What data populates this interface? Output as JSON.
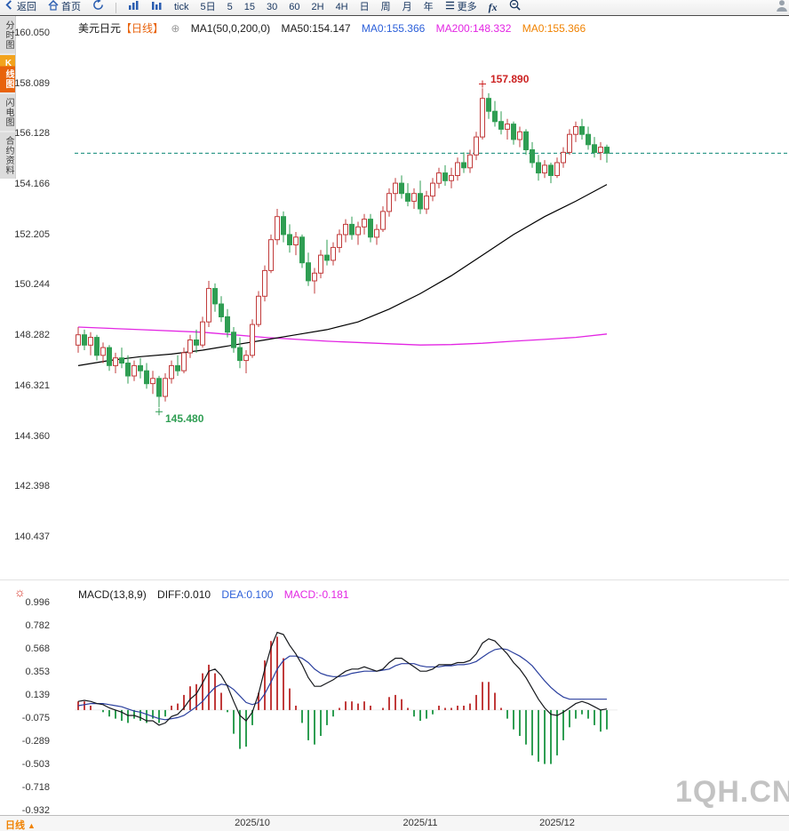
{
  "toolbar": {
    "items": [
      {
        "name": "back-button",
        "icon": "back",
        "label": "返回"
      },
      {
        "name": "home-button",
        "icon": "home",
        "label": "首页"
      },
      {
        "name": "refresh-button",
        "icon": "refresh",
        "label": ""
      },
      {
        "name": "toolbar-separator",
        "type": "sep"
      },
      {
        "name": "chart-type-bars-button",
        "icon": "bars",
        "label": ""
      },
      {
        "name": "chart-type-columns-button",
        "icon": "columns",
        "label": ""
      },
      {
        "name": "period-tick-button",
        "label": "tick"
      },
      {
        "name": "period-5d-button",
        "label": "5日"
      },
      {
        "name": "period-5-button",
        "label": "5"
      },
      {
        "name": "period-15-button",
        "label": "15"
      },
      {
        "name": "period-30-button",
        "label": "30"
      },
      {
        "name": "period-60-button",
        "label": "60"
      },
      {
        "name": "period-2h-button",
        "label": "2H"
      },
      {
        "name": "period-4h-button",
        "label": "4H"
      },
      {
        "name": "period-day-button",
        "label": "日"
      },
      {
        "name": "period-week-button",
        "label": "周"
      },
      {
        "name": "period-month-button",
        "label": "月"
      },
      {
        "name": "period-year-button",
        "label": "年"
      },
      {
        "name": "more-button",
        "icon": "menu",
        "label": "更多"
      },
      {
        "name": "fx-indicators-button",
        "label": "fx"
      },
      {
        "name": "zoom-out-button",
        "icon": "zoom",
        "label": ""
      },
      {
        "name": "user-button",
        "icon": "user",
        "label": ""
      }
    ]
  },
  "sidebar": {
    "items": [
      {
        "label": "分时图",
        "selected": false
      },
      {
        "label": "K线图",
        "selected": true
      },
      {
        "label": "闪电图",
        "selected": false
      },
      {
        "label": "合约资料",
        "selected": false
      }
    ]
  },
  "legend": {
    "symbol": "美元日元",
    "period_tag": "【日线】",
    "ma_params": "MA1(50,0,200,0)",
    "ma50": "MA50:154.147",
    "ma0_blue": "MA0:155.366",
    "ma200": "MA200:148.332",
    "ma0_orange": "MA0:155.366"
  },
  "macd_legend": {
    "params": "MACD(13,8,9)",
    "diff": "DIFF:0.010",
    "dea": "DEA:0.100",
    "macd": "MACD:-0.181"
  },
  "bottom_bar": {
    "period_label": "日线"
  },
  "watermark": "1QH.CN",
  "icons": {
    "plus_circle": "⊕",
    "up_arrow": "▲",
    "settings_sun": "☼"
  },
  "colors": {
    "up": "#c13b3b",
    "down": "#2f9e53",
    "ma50": "#000000",
    "ma200": "#e326e3",
    "last_price_line": "#0c8876",
    "diff_line": "#16181c",
    "dea_line": "#2a3f9e",
    "high_label": "#cc2222",
    "low_label": "#2f9e53",
    "accent_orange": "#e8630c"
  },
  "chart_data": [
    {
      "type": "candlestick",
      "title": "美元日元",
      "period": "日线",
      "last_price": 155.366,
      "y_axis_labels": [
        "160.050",
        "158.089",
        "156.128",
        "154.166",
        "152.205",
        "150.244",
        "148.282",
        "146.321",
        "144.360",
        "142.398",
        "140.437"
      ],
      "x_axis_labels": [
        {
          "label": "2025/10",
          "index": 28
        },
        {
          "label": "2025/11",
          "index": 55
        },
        {
          "label": "2025/12",
          "index": 77
        }
      ],
      "high_annotation": {
        "value": "157.890",
        "index": 65
      },
      "low_annotation": {
        "value": "145.480",
        "index": 13
      },
      "overlays": {
        "ma50": {
          "points": [
            [
              0,
              147.1
            ],
            [
              5,
              147.3
            ],
            [
              10,
              147.45
            ],
            [
              15,
              147.55
            ],
            [
              20,
              147.7
            ],
            [
              25,
              147.9
            ],
            [
              30,
              148.1
            ],
            [
              35,
              148.3
            ],
            [
              40,
              148.5
            ],
            [
              45,
              148.8
            ],
            [
              50,
              149.3
            ],
            [
              55,
              149.9
            ],
            [
              60,
              150.6
            ],
            [
              65,
              151.4
            ],
            [
              70,
              152.2
            ],
            [
              75,
              152.9
            ],
            [
              80,
              153.5
            ],
            [
              85,
              154.15
            ]
          ]
        },
        "ma200": {
          "points": [
            [
              0,
              148.6
            ],
            [
              10,
              148.5
            ],
            [
              20,
              148.4
            ],
            [
              30,
              148.2
            ],
            [
              40,
              148.05
            ],
            [
              50,
              147.95
            ],
            [
              55,
              147.9
            ],
            [
              60,
              147.92
            ],
            [
              65,
              147.97
            ],
            [
              70,
              148.05
            ],
            [
              75,
              148.12
            ],
            [
              80,
              148.2
            ],
            [
              85,
              148.33
            ]
          ]
        }
      },
      "candles": [
        [
          147.9,
          148.6,
          147.6,
          148.3
        ],
        [
          148.3,
          148.5,
          147.7,
          147.9
        ],
        [
          147.9,
          148.4,
          147.5,
          148.2
        ],
        [
          148.2,
          148.3,
          147.3,
          147.5
        ],
        [
          147.5,
          148.0,
          147.2,
          147.8
        ],
        [
          147.8,
          147.9,
          146.9,
          147.1
        ],
        [
          147.1,
          147.6,
          146.8,
          147.4
        ],
        [
          147.4,
          147.8,
          147.0,
          147.2
        ],
        [
          147.2,
          147.5,
          146.4,
          146.7
        ],
        [
          146.7,
          147.3,
          146.5,
          147.1
        ],
        [
          147.1,
          147.4,
          146.6,
          146.9
        ],
        [
          146.9,
          147.2,
          146.2,
          146.4
        ],
        [
          146.4,
          146.9,
          146.0,
          146.6
        ],
        [
          146.6,
          146.7,
          145.48,
          145.9
        ],
        [
          145.9,
          146.8,
          145.7,
          146.6
        ],
        [
          146.6,
          147.3,
          146.4,
          147.1
        ],
        [
          147.1,
          147.5,
          146.7,
          146.9
        ],
        [
          146.9,
          147.8,
          146.8,
          147.6
        ],
        [
          147.6,
          148.3,
          147.4,
          148.1
        ],
        [
          148.1,
          148.5,
          147.6,
          147.9
        ],
        [
          147.9,
          149.0,
          147.8,
          148.8
        ],
        [
          148.8,
          150.4,
          148.6,
          150.1
        ],
        [
          150.1,
          150.3,
          149.2,
          149.5
        ],
        [
          149.5,
          149.8,
          148.8,
          149.0
        ],
        [
          149.0,
          149.3,
          148.2,
          148.4
        ],
        [
          148.4,
          148.6,
          147.6,
          147.8
        ],
        [
          147.8,
          148.2,
          147.0,
          147.3
        ],
        [
          147.3,
          147.7,
          146.8,
          147.5
        ],
        [
          147.5,
          148.9,
          147.4,
          148.7
        ],
        [
          148.7,
          150.0,
          148.6,
          149.8
        ],
        [
          149.8,
          151.0,
          149.6,
          150.8
        ],
        [
          150.8,
          152.2,
          150.7,
          152.0
        ],
        [
          152.0,
          153.2,
          151.8,
          152.9
        ],
        [
          152.9,
          153.1,
          151.9,
          152.2
        ],
        [
          152.2,
          152.6,
          151.5,
          151.8
        ],
        [
          151.8,
          152.3,
          151.4,
          152.1
        ],
        [
          152.1,
          152.2,
          150.9,
          151.1
        ],
        [
          151.1,
          151.5,
          150.2,
          150.4
        ],
        [
          150.4,
          150.9,
          149.9,
          150.7
        ],
        [
          150.7,
          151.6,
          150.5,
          151.4
        ],
        [
          151.4,
          152.0,
          151.0,
          151.2
        ],
        [
          151.2,
          151.9,
          151.0,
          151.7
        ],
        [
          151.7,
          152.4,
          151.5,
          152.2
        ],
        [
          152.2,
          152.8,
          151.9,
          152.6
        ],
        [
          152.6,
          152.9,
          152.0,
          152.2
        ],
        [
          152.2,
          152.7,
          151.8,
          152.5
        ],
        [
          152.5,
          153.0,
          152.2,
          152.8
        ],
        [
          152.8,
          153.0,
          151.9,
          152.1
        ],
        [
          152.1,
          152.6,
          151.8,
          152.4
        ],
        [
          152.4,
          153.3,
          152.3,
          153.1
        ],
        [
          153.1,
          154.0,
          152.9,
          153.8
        ],
        [
          153.8,
          154.4,
          153.5,
          154.2
        ],
        [
          154.2,
          154.5,
          153.6,
          153.8
        ],
        [
          153.8,
          154.2,
          153.3,
          153.5
        ],
        [
          153.5,
          154.0,
          153.2,
          153.8
        ],
        [
          153.8,
          154.3,
          153.0,
          153.2
        ],
        [
          153.2,
          153.9,
          153.0,
          153.7
        ],
        [
          153.7,
          154.4,
          153.5,
          154.2
        ],
        [
          154.2,
          154.8,
          154.0,
          154.6
        ],
        [
          154.6,
          154.9,
          154.1,
          154.3
        ],
        [
          154.3,
          154.8,
          154.0,
          154.5
        ],
        [
          154.5,
          155.2,
          154.3,
          155.0
        ],
        [
          155.0,
          155.4,
          154.6,
          154.8
        ],
        [
          154.8,
          155.5,
          154.6,
          155.3
        ],
        [
          155.3,
          156.2,
          155.1,
          156.0
        ],
        [
          156.0,
          157.89,
          155.9,
          157.5
        ],
        [
          157.5,
          157.7,
          156.7,
          157.0
        ],
        [
          157.0,
          157.4,
          156.4,
          156.6
        ],
        [
          156.6,
          157.0,
          156.1,
          156.3
        ],
        [
          156.3,
          156.7,
          155.9,
          156.5
        ],
        [
          156.5,
          156.6,
          155.7,
          155.9
        ],
        [
          155.9,
          156.4,
          155.6,
          156.2
        ],
        [
          156.2,
          156.3,
          155.3,
          155.5
        ],
        [
          155.5,
          155.8,
          154.8,
          155.0
        ],
        [
          155.0,
          155.3,
          154.3,
          154.6
        ],
        [
          154.6,
          155.1,
          154.4,
          154.9
        ],
        [
          154.9,
          155.0,
          154.2,
          154.5
        ],
        [
          154.5,
          155.2,
          154.4,
          155.0
        ],
        [
          155.0,
          155.6,
          154.8,
          155.4
        ],
        [
          155.4,
          156.3,
          155.3,
          156.1
        ],
        [
          156.1,
          156.6,
          155.8,
          156.4
        ],
        [
          156.4,
          156.7,
          155.9,
          156.1
        ],
        [
          156.1,
          156.4,
          155.5,
          155.7
        ],
        [
          155.7,
          156.0,
          155.2,
          155.4
        ],
        [
          155.4,
          155.8,
          155.1,
          155.6
        ],
        [
          155.6,
          155.7,
          155.0,
          155.366
        ]
      ]
    },
    {
      "type": "macd_histogram_line",
      "params": "MACD(13,8,9)",
      "diff_value": 0.01,
      "dea_value": 0.1,
      "macd_value": -0.181,
      "y_axis_labels": [
        "0.996",
        "0.782",
        "0.568",
        "0.353",
        "0.139",
        "-0.075",
        "-0.289",
        "-0.503",
        "-0.718",
        "-0.932"
      ],
      "diff_series": [
        0.08,
        0.09,
        0.08,
        0.06,
        0.05,
        0.02,
        0.0,
        -0.02,
        -0.05,
        -0.05,
        -0.07,
        -0.1,
        -0.1,
        -0.14,
        -0.12,
        -0.06,
        -0.04,
        0.02,
        0.1,
        0.15,
        0.25,
        0.36,
        0.38,
        0.32,
        0.22,
        0.08,
        -0.05,
        -0.1,
        -0.02,
        0.15,
        0.38,
        0.58,
        0.72,
        0.7,
        0.6,
        0.52,
        0.42,
        0.3,
        0.22,
        0.22,
        0.25,
        0.28,
        0.32,
        0.36,
        0.38,
        0.38,
        0.4,
        0.38,
        0.36,
        0.38,
        0.44,
        0.48,
        0.48,
        0.44,
        0.4,
        0.36,
        0.36,
        0.38,
        0.42,
        0.42,
        0.42,
        0.44,
        0.44,
        0.46,
        0.52,
        0.62,
        0.66,
        0.64,
        0.58,
        0.52,
        0.44,
        0.38,
        0.3,
        0.2,
        0.1,
        0.02,
        -0.04,
        -0.05,
        -0.02,
        0.02,
        0.06,
        0.08,
        0.06,
        0.03,
        0.0,
        0.01
      ],
      "dea_series": [
        0.04,
        0.05,
        0.06,
        0.06,
        0.06,
        0.05,
        0.04,
        0.03,
        0.01,
        -0.01,
        -0.02,
        -0.04,
        -0.06,
        -0.08,
        -0.09,
        -0.08,
        -0.07,
        -0.05,
        -0.01,
        0.03,
        0.08,
        0.15,
        0.21,
        0.24,
        0.23,
        0.19,
        0.13,
        0.07,
        0.05,
        0.07,
        0.15,
        0.26,
        0.38,
        0.46,
        0.5,
        0.5,
        0.48,
        0.44,
        0.38,
        0.34,
        0.32,
        0.31,
        0.31,
        0.32,
        0.34,
        0.35,
        0.36,
        0.36,
        0.36,
        0.37,
        0.38,
        0.41,
        0.43,
        0.43,
        0.43,
        0.41,
        0.4,
        0.4,
        0.4,
        0.41,
        0.41,
        0.42,
        0.42,
        0.43,
        0.45,
        0.49,
        0.53,
        0.56,
        0.57,
        0.56,
        0.53,
        0.5,
        0.46,
        0.41,
        0.34,
        0.27,
        0.21,
        0.16,
        0.12,
        0.1,
        0.1,
        0.1,
        0.1,
        0.1,
        0.1,
        0.1
      ]
    }
  ]
}
